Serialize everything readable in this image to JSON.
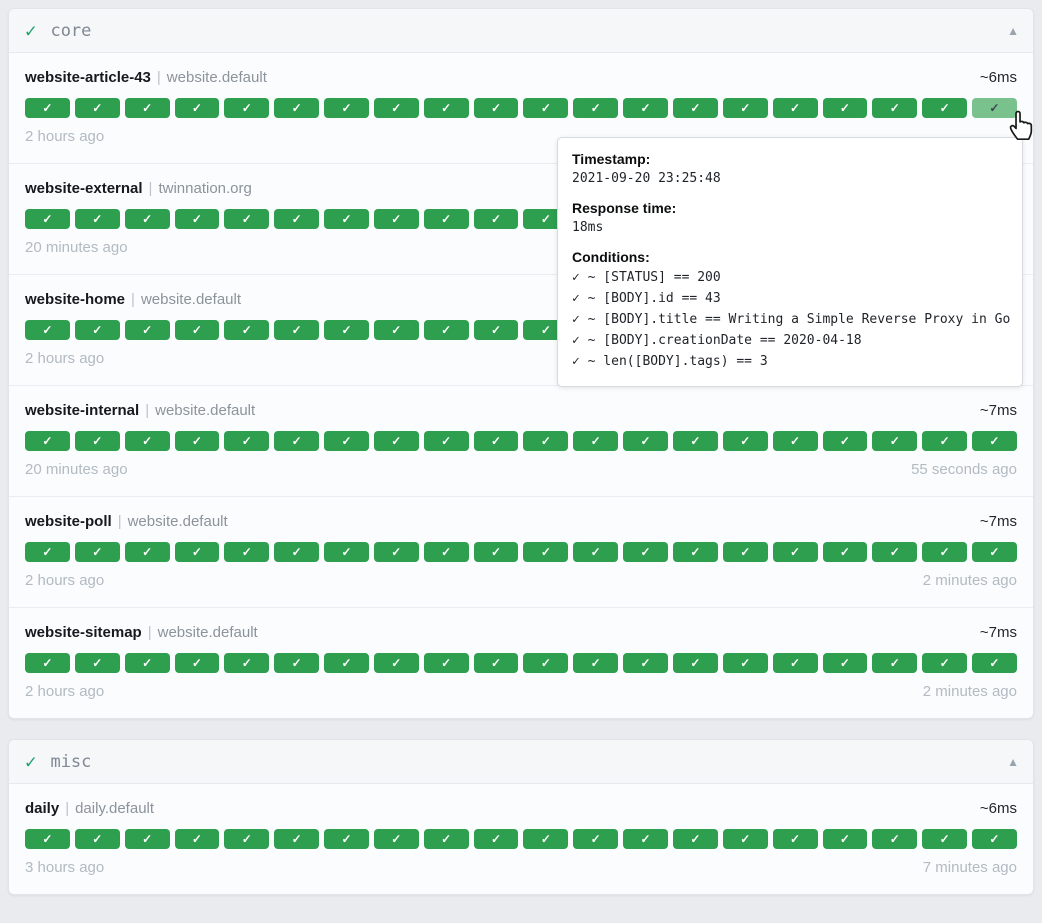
{
  "colors": {
    "success_green": "#2e9e4f",
    "success_green_hover": "#79c18d",
    "header_check_green": "#1ea26a",
    "page_background": "#e9ebee"
  },
  "glyphs": {
    "status_check": "✓",
    "section_check": "✓",
    "collapse_triangle": "▲",
    "endpoint_separator": "|"
  },
  "sections": [
    {
      "title": "core",
      "endpoints": [
        {
          "name": "website-article-43",
          "group": "website.default",
          "response_time": "~6ms",
          "history": {
            "count": 20,
            "status": "success",
            "hovered_index": 19
          },
          "footer_left": "2 hours ago",
          "footer_right": ""
        },
        {
          "name": "website-external",
          "group": "twinnation.org",
          "response_time": "",
          "history": {
            "count": 20,
            "status": "success"
          },
          "footer_left": "20 minutes ago",
          "footer_right": ""
        },
        {
          "name": "website-home",
          "group": "website.default",
          "response_time": "",
          "history": {
            "count": 20,
            "status": "success"
          },
          "footer_left": "2 hours ago",
          "footer_right": ""
        },
        {
          "name": "website-internal",
          "group": "website.default",
          "response_time": "~7ms",
          "history": {
            "count": 20,
            "status": "success"
          },
          "footer_left": "20 minutes ago",
          "footer_right": "55 seconds ago"
        },
        {
          "name": "website-poll",
          "group": "website.default",
          "response_time": "~7ms",
          "history": {
            "count": 20,
            "status": "success"
          },
          "footer_left": "2 hours ago",
          "footer_right": "2 minutes ago"
        },
        {
          "name": "website-sitemap",
          "group": "website.default",
          "response_time": "~7ms",
          "history": {
            "count": 20,
            "status": "success"
          },
          "footer_left": "2 hours ago",
          "footer_right": "2 minutes ago"
        }
      ]
    },
    {
      "title": "misc",
      "endpoints": [
        {
          "name": "daily",
          "group": "daily.default",
          "response_time": "~6ms",
          "history": {
            "count": 20,
            "status": "success"
          },
          "footer_left": "3 hours ago",
          "footer_right": "7 minutes ago"
        }
      ]
    }
  ],
  "tooltip": {
    "timestamp_label": "Timestamp:",
    "timestamp": "2021-09-20 23:25:48",
    "response_time_label": "Response time:",
    "response_time": "18ms",
    "conditions_label": "Conditions:",
    "conditions": [
      "✓ ~ [STATUS] == 200",
      "✓ ~ [BODY].id == 43",
      "✓ ~ [BODY].title == Writing a Simple Reverse Proxy in Go",
      "✓ ~ [BODY].creationDate == 2020-04-18",
      "✓ ~ len([BODY].tags) == 3"
    ]
  }
}
